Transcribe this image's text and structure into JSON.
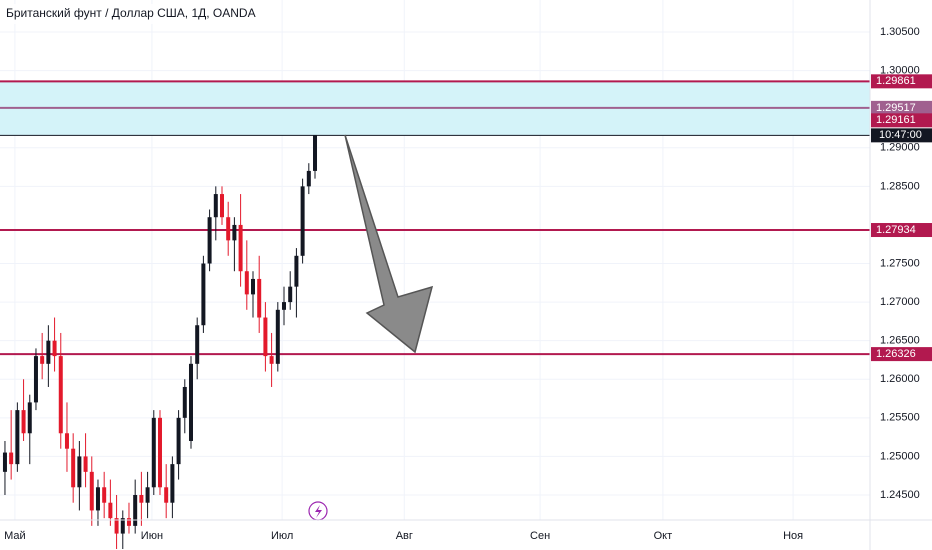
{
  "chart_data": {
    "type": "candlestick",
    "title": "Британский фунт / Доллар США, 1Д, OANDA",
    "up_color": "#131722",
    "down_color": "#e3192b",
    "open": [
      1.248,
      1.2505,
      1.249,
      1.256,
      1.253,
      1.257,
      1.263,
      1.262,
      1.265,
      1.263,
      1.253,
      1.251,
      1.246,
      1.25,
      1.248,
      1.243,
      1.246,
      1.244,
      1.242,
      1.24,
      1.242,
      1.241,
      1.245,
      1.244,
      1.246,
      1.255,
      1.246,
      1.244,
      1.249,
      1.255,
      1.252,
      1.262,
      1.267,
      1.275,
      1.281,
      1.284,
      1.281,
      1.278,
      1.28,
      1.274,
      1.271,
      1.273,
      1.268,
      1.263,
      1.262,
      1.269,
      1.27,
      1.272,
      1.276,
      1.285,
      1.287
    ],
    "high": [
      1.252,
      1.256,
      1.257,
      1.26,
      1.258,
      1.264,
      1.266,
      1.267,
      1.268,
      1.266,
      1.257,
      1.253,
      1.252,
      1.253,
      1.25,
      1.247,
      1.248,
      1.247,
      1.245,
      1.243,
      1.244,
      1.247,
      1.248,
      1.248,
      1.256,
      1.256,
      1.249,
      1.25,
      1.256,
      1.26,
      1.263,
      1.268,
      1.276,
      1.282,
      1.285,
      1.285,
      1.283,
      1.281,
      1.284,
      1.278,
      1.274,
      1.276,
      1.27,
      1.266,
      1.27,
      1.272,
      1.274,
      1.277,
      1.286,
      1.288,
      1.2916
    ],
    "low": [
      1.245,
      1.247,
      1.248,
      1.252,
      1.249,
      1.256,
      1.26,
      1.259,
      1.261,
      1.251,
      1.248,
      1.244,
      1.243,
      1.246,
      1.241,
      1.241,
      1.242,
      1.241,
      1.238,
      1.238,
      1.24,
      1.24,
      1.241,
      1.242,
      1.245,
      1.245,
      1.242,
      1.242,
      1.247,
      1.253,
      1.251,
      1.26,
      1.266,
      1.274,
      1.278,
      1.28,
      1.276,
      1.274,
      1.272,
      1.269,
      1.268,
      1.266,
      1.261,
      1.259,
      1.261,
      1.267,
      1.269,
      1.268,
      1.275,
      1.284,
      1.286
    ],
    "close": [
      1.2505,
      1.249,
      1.256,
      1.253,
      1.257,
      1.263,
      1.262,
      1.265,
      1.263,
      1.253,
      1.251,
      1.246,
      1.25,
      1.248,
      1.243,
      1.246,
      1.244,
      1.242,
      1.24,
      1.242,
      1.241,
      1.245,
      1.244,
      1.246,
      1.255,
      1.246,
      1.244,
      1.249,
      1.255,
      1.259,
      1.262,
      1.267,
      1.275,
      1.281,
      1.284,
      1.281,
      1.278,
      1.28,
      1.274,
      1.271,
      1.273,
      1.268,
      1.263,
      1.262,
      1.269,
      1.27,
      1.272,
      1.276,
      1.285,
      1.287,
      1.29161
    ],
    "xlim": [
      -0.8,
      139.5
    ],
    "xticks": [
      {
        "value": 1.6,
        "label": "Май"
      },
      {
        "value": 23.7,
        "label": "Июн"
      },
      {
        "value": 44.7,
        "label": "Июл"
      },
      {
        "value": 64.4,
        "label": "Авг"
      },
      {
        "value": 86.3,
        "label": "Сен"
      },
      {
        "value": 106.1,
        "label": "Окт"
      },
      {
        "value": 127.1,
        "label": "Ноя"
      }
    ],
    "ylim": [
      1.24176,
      1.30915
    ],
    "yticks": [
      {
        "value": 1.245,
        "label": "1.24500"
      },
      {
        "value": 1.25,
        "label": "1.25000"
      },
      {
        "value": 1.255,
        "label": "1.25500"
      },
      {
        "value": 1.26,
        "label": "1.26000"
      },
      {
        "value": 1.265,
        "label": "1.26500"
      },
      {
        "value": 1.27,
        "label": "1.27000"
      },
      {
        "value": 1.275,
        "label": "1.27500"
      },
      {
        "value": 1.285,
        "label": "1.28500"
      },
      {
        "value": 1.29,
        "label": "1.29000"
      },
      {
        "value": 1.3,
        "label": "1.30000"
      },
      {
        "value": 1.305,
        "label": "1.30500"
      }
    ],
    "grid": true,
    "levels": [
      {
        "value": 1.29861,
        "color": "#b2194f"
      },
      {
        "value": 1.29517,
        "color": "#a0608f"
      },
      {
        "value": 1.27934,
        "color": "#b2194f"
      },
      {
        "value": 1.26326,
        "color": "#b2194f"
      }
    ],
    "zone": {
      "color": "#d4f3f9"
    },
    "last_price_label_color": "#b2194f",
    "last_price_time": "10:47:00"
  }
}
